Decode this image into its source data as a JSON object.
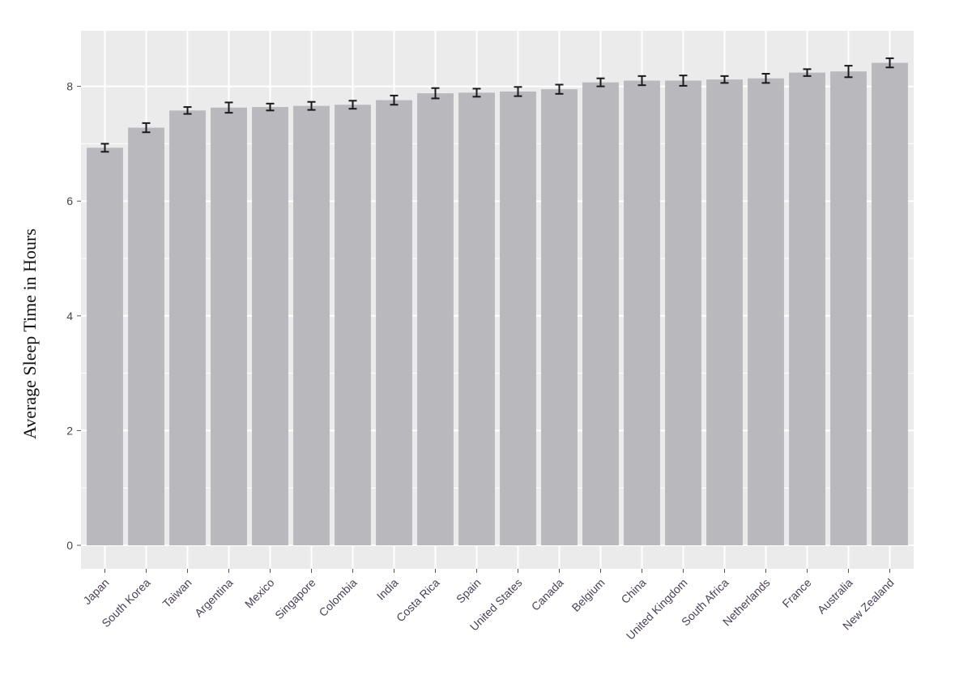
{
  "chart_data": {
    "type": "bar",
    "title": "",
    "xlabel": "",
    "ylabel": "Average Sleep Time in Hours",
    "ylim": [
      0,
      8.9
    ],
    "yticks": [
      0,
      2,
      4,
      6,
      8
    ],
    "grid": true,
    "categories": [
      "Japan",
      "South Korea",
      "Taiwan",
      "Argentina",
      "Mexico",
      "Singapore",
      "Colombia",
      "India",
      "Costa Rica",
      "Spain",
      "United States",
      "Canada",
      "Belgium",
      "China",
      "United Kingdom",
      "South Africa",
      "Netherlands",
      "France",
      "Australia",
      "New Zealand"
    ],
    "values": [
      6.93,
      7.28,
      7.58,
      7.63,
      7.64,
      7.66,
      7.68,
      7.76,
      7.88,
      7.89,
      7.91,
      7.95,
      8.07,
      8.1,
      8.1,
      8.12,
      8.14,
      8.24,
      8.26,
      8.41
    ],
    "errors": [
      0.07,
      0.08,
      0.06,
      0.09,
      0.06,
      0.07,
      0.07,
      0.08,
      0.09,
      0.07,
      0.08,
      0.08,
      0.07,
      0.08,
      0.09,
      0.06,
      0.08,
      0.06,
      0.1,
      0.08
    ],
    "colors": {
      "bar": "#b9b9bd",
      "panel": "#ebebeb",
      "grid": "#ffffff",
      "errorbar": "#1a1a1a"
    }
  }
}
